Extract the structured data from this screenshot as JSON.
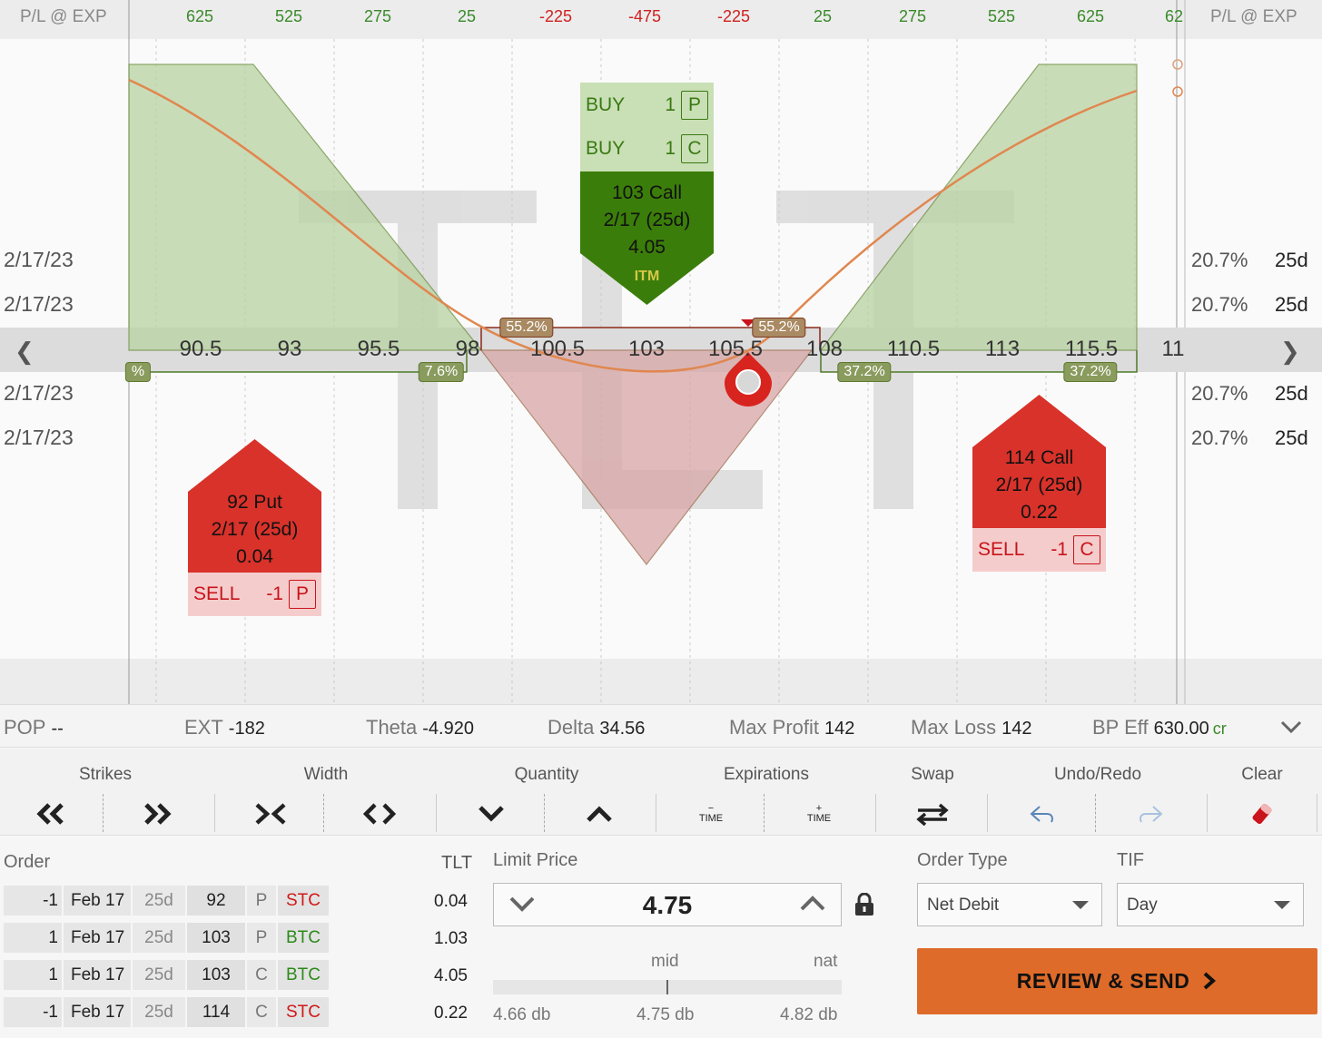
{
  "curve": {
    "header_left": "P/L @ EXP",
    "header_right": "P/L @ EXP",
    "pl_values": [
      {
        "x": 220,
        "text": "625",
        "sign": "pos"
      },
      {
        "x": 318,
        "text": "525",
        "sign": "pos"
      },
      {
        "x": 416,
        "text": "275",
        "sign": "pos"
      },
      {
        "x": 514,
        "text": "25",
        "sign": "pos"
      },
      {
        "x": 612,
        "text": "-225",
        "sign": "neg"
      },
      {
        "x": 710,
        "text": "-475",
        "sign": "neg"
      },
      {
        "x": 808,
        "text": "-225",
        "sign": "neg"
      },
      {
        "x": 906,
        "text": "25",
        "sign": "pos"
      },
      {
        "x": 1005,
        "text": "275",
        "sign": "pos"
      },
      {
        "x": 1103,
        "text": "525",
        "sign": "pos"
      },
      {
        "x": 1201,
        "text": "625",
        "sign": "pos"
      },
      {
        "x": 1293,
        "text": "62",
        "sign": "pos"
      }
    ],
    "expirations": [
      {
        "date": "2/17/23",
        "iv": "20.7%",
        "dte": "25d"
      },
      {
        "date": "2/17/23",
        "iv": "20.7%",
        "dte": "25d"
      },
      {
        "date": "2/17/23",
        "iv": "20.7%",
        "dte": "25d"
      },
      {
        "date": "2/17/23",
        "iv": "20.7%",
        "dte": "25d"
      }
    ],
    "strikes": [
      "90.5",
      "93",
      "95.5",
      "98",
      "100.5",
      "103",
      "105.5",
      "108",
      "110.5",
      "113",
      "115.5",
      "11"
    ],
    "prob_tags": {
      "left_edge": "%",
      "put_side": "7.6%",
      "inner_left": "55.2%",
      "inner_right": "55.2%",
      "call_side_left": "37.2%",
      "call_side_right": "37.2%"
    },
    "watermark": "TLT",
    "colors": {
      "profit": "#c5dcb4",
      "loss": "#dfb9b9",
      "curve": "#e0874f",
      "buy": "#3a7a14",
      "sell": "#c8141a"
    }
  },
  "legs": {
    "buy_card": {
      "row1": {
        "action": "BUY",
        "qty": "1",
        "type": "P"
      },
      "row2": {
        "action": "BUY",
        "qty": "1",
        "type": "C"
      },
      "line1": "103 Call",
      "line2": "2/17 (25d)",
      "line3": "4.05",
      "badge": "ITM"
    },
    "put_card": {
      "line1": "92 Put",
      "line2": "2/17 (25d)",
      "line3": "0.04",
      "row": {
        "action": "SELL",
        "qty": "-1",
        "type": "P"
      }
    },
    "call_card": {
      "line1": "114 Call",
      "line2": "2/17 (25d)",
      "line3": "0.22",
      "row": {
        "action": "SELL",
        "qty": "-1",
        "type": "C"
      }
    }
  },
  "stats": {
    "pop": {
      "label": "POP",
      "value": "--"
    },
    "ext": {
      "label": "EXT",
      "value": "-182"
    },
    "theta": {
      "label": "Theta",
      "value": "-4.920"
    },
    "delta": {
      "label": "Delta",
      "value": "34.56"
    },
    "max_profit": {
      "label": "Max Profit",
      "value": "142"
    },
    "max_loss": {
      "label": "Max Loss",
      "value": "142"
    },
    "bp_eff": {
      "label": "BP Eff",
      "value": "630.00",
      "suffix": "cr"
    }
  },
  "toolbar": {
    "strikes": "Strikes",
    "width": "Width",
    "quantity": "Quantity",
    "expirations": "Expirations",
    "swap": "Swap",
    "undo_redo": "Undo/Redo",
    "clear": "Clear",
    "time_minus": "TIME",
    "time_plus": "TIME",
    "minus": "−",
    "plus": "+"
  },
  "order": {
    "label": "Order",
    "symbol": "TLT",
    "rows": [
      {
        "qty": "-1",
        "date": "Feb 17",
        "dte": "25d",
        "strike": "92",
        "type": "P",
        "action": "STC",
        "price": "0.04"
      },
      {
        "qty": "1",
        "date": "Feb 17",
        "dte": "25d",
        "strike": "103",
        "type": "P",
        "action": "BTC",
        "price": "1.03"
      },
      {
        "qty": "1",
        "date": "Feb 17",
        "dte": "25d",
        "strike": "103",
        "type": "C",
        "action": "BTC",
        "price": "4.05"
      },
      {
        "qty": "-1",
        "date": "Feb 17",
        "dte": "25d",
        "strike": "114",
        "type": "C",
        "action": "STC",
        "price": "0.22"
      }
    ],
    "limit_price_label": "Limit Price",
    "limit_price": "4.75",
    "mid_label": "mid",
    "nat_label": "nat",
    "low_price": "4.66 db",
    "mid_price": "4.75 db",
    "high_price": "4.82 db",
    "order_type_label": "Order Type",
    "order_type": "Net Debit",
    "tif_label": "TIF",
    "tif": "Day",
    "review_send": "REVIEW & SEND"
  }
}
